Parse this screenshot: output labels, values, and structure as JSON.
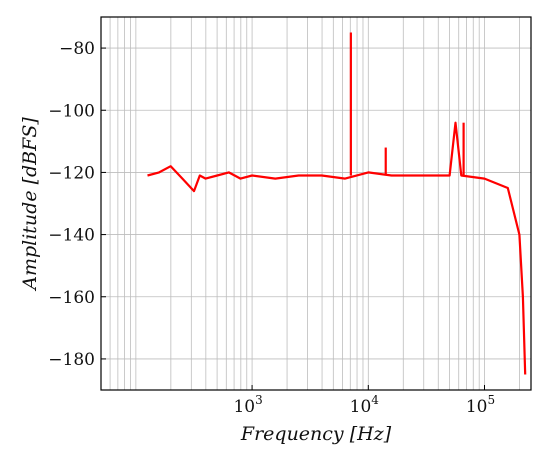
{
  "chart_data": {
    "type": "line",
    "title": "",
    "xlabel": "Frequency [Hz]",
    "ylabel": "Amplitude [dBFS]",
    "xscale": "log",
    "xlim_log10": [
      1.7,
      5.4
    ],
    "ylim": [
      -190,
      -70
    ],
    "grid": true,
    "x_tick_labels": [
      {
        "base": "10",
        "exp": "3",
        "log10_value": 3
      },
      {
        "base": "10",
        "exp": "4",
        "log10_value": 4
      },
      {
        "base": "10",
        "exp": "5",
        "log10_value": 5
      }
    ],
    "y_ticks": [
      -80,
      -100,
      -120,
      -140,
      -160,
      -180
    ],
    "y_tick_labels": [
      "−80",
      "−100",
      "−120",
      "−140",
      "−160",
      "−180"
    ],
    "series": [
      {
        "color": "#ff0000",
        "log10_x": [
          2.1,
          2.2,
          2.3,
          2.4,
          2.5,
          2.55,
          2.6,
          2.7,
          2.8,
          2.9,
          3.0,
          3.2,
          3.4,
          3.6,
          3.8,
          4.0,
          4.2,
          4.4,
          4.7,
          4.75,
          4.8,
          5.0,
          5.2,
          5.3,
          5.33,
          5.35
        ],
        "y": [
          -121,
          -120,
          -118,
          -122,
          -126,
          -121,
          -122,
          -121,
          -120,
          -122,
          -121,
          -122,
          -121,
          -121,
          -122,
          -120,
          -121,
          -121,
          -121,
          -104,
          -121,
          -122,
          -125,
          -140,
          -160,
          -185
        ]
      }
    ],
    "peaks": [
      {
        "log10_x": 3.85,
        "y": -75
      },
      {
        "log10_x": 4.15,
        "y": -112
      },
      {
        "log10_x": 4.82,
        "y": -104
      }
    ]
  }
}
